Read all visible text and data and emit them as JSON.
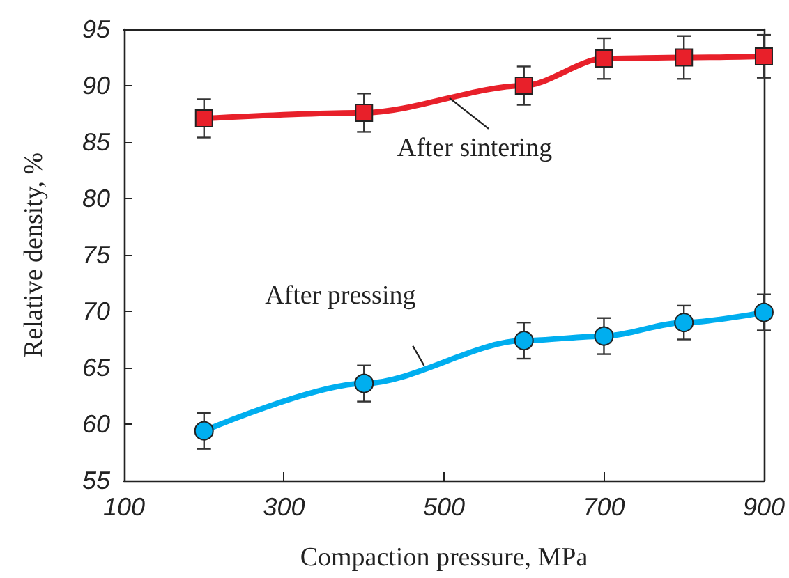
{
  "chart_data": {
    "type": "line",
    "xlabel": "Compaction pressure, MPa",
    "ylabel": "Relative density, %",
    "x": [
      200,
      400,
      600,
      700,
      800,
      900
    ],
    "series": [
      {
        "color": "#e8202a",
        "marker": "square",
        "values": [
          87.1,
          87.6,
          90.0,
          92.4,
          92.5,
          92.6
        ],
        "errors": [
          1.7,
          1.7,
          1.7,
          1.8,
          1.9,
          1.9
        ]
      },
      {
        "color": "#00aeef",
        "marker": "circle",
        "values": [
          59.4,
          63.6,
          67.4,
          67.8,
          69.0,
          69.9
        ],
        "errors": [
          1.6,
          1.6,
          1.6,
          1.6,
          1.5,
          1.6
        ]
      }
    ],
    "annotations": [
      {
        "text": "After sintering",
        "x": 507,
        "y": 88.9
      },
      {
        "text": "After pressing",
        "x": 475,
        "y": 65.2
      }
    ],
    "xlim": [
      100,
      900
    ],
    "xticks": [
      100,
      300,
      500,
      700,
      900
    ],
    "ylim": [
      55,
      95
    ],
    "yticks": [
      55,
      60,
      65,
      70,
      75,
      80,
      85,
      90,
      95
    ],
    "grid": false,
    "line_style": "solid"
  }
}
